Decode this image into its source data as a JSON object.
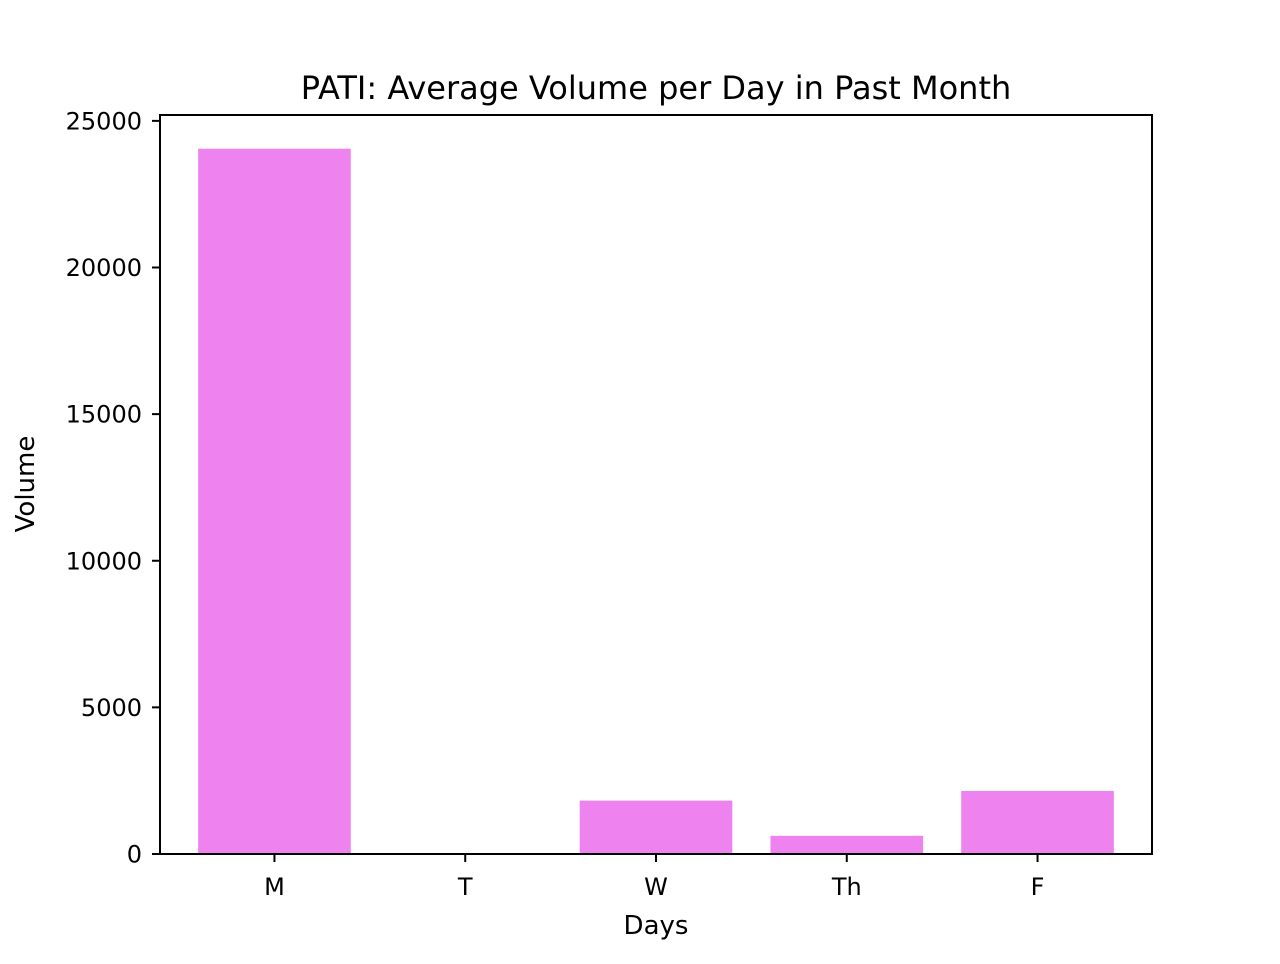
{
  "chart_data": {
    "type": "bar",
    "title": "PATI: Average Volume per Day in Past Month",
    "xlabel": "Days",
    "ylabel": "Volume",
    "categories": [
      "M",
      "T",
      "W",
      "Th",
      "F"
    ],
    "values": [
      24050,
      0,
      1820,
      620,
      2150
    ],
    "ylim": [
      0,
      25200
    ],
    "yticks": [
      0,
      5000,
      10000,
      15000,
      20000,
      25000
    ],
    "grid": false,
    "legend": "none",
    "bar_color": "#ee82ee",
    "axis_color": "#000000"
  }
}
